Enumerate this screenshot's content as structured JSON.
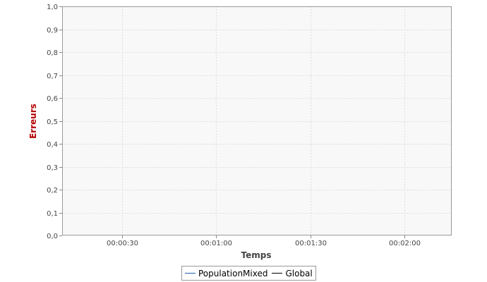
{
  "chart_data": {
    "type": "line",
    "title": "",
    "xlabel": "Temps",
    "ylabel": "Erreurs",
    "ylabel_color": "#b40000",
    "x_ticks": [
      "00:00:30",
      "00:01:00",
      "00:01:30",
      "00:02:00"
    ],
    "x_tick_seconds": [
      30,
      60,
      90,
      120
    ],
    "xlim_seconds": [
      11,
      135
    ],
    "ylim": [
      0.0,
      1.0
    ],
    "y_ticks": [
      "0,0",
      "0,1",
      "0,2",
      "0,3",
      "0,4",
      "0,5",
      "0,6",
      "0,7",
      "0,8",
      "0,9",
      "1,0"
    ],
    "y_tick_values": [
      0.0,
      0.1,
      0.2,
      0.3,
      0.4,
      0.5,
      0.6,
      0.7,
      0.8,
      0.9,
      1.0
    ],
    "grid": true,
    "plot_background": "#f8f8f8",
    "grid_color": "#dddddd",
    "legend_position": "bottom",
    "series": [
      {
        "name": "PopulationMixed",
        "color": "#1f5fa8",
        "values": []
      },
      {
        "name": "Global",
        "color": "#000000",
        "values": []
      }
    ]
  }
}
